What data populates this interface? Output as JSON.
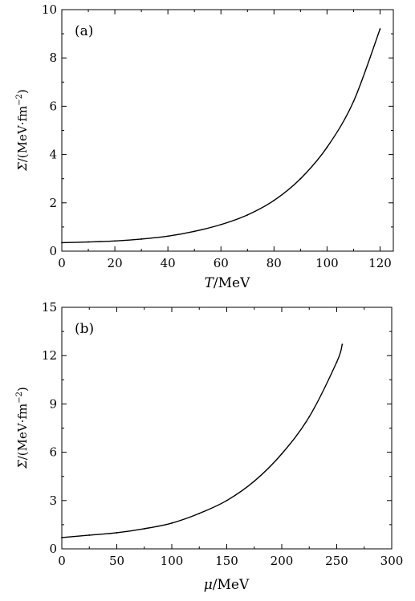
{
  "chart_data": [
    {
      "type": "line",
      "panel_label": "(a)",
      "xlabel_italic": "T",
      "xlabel_unit": "/MeV",
      "ylabel_italic": "Σ",
      "ylabel_unit": "/(MeV·fm",
      "ylabel_exp": "−2",
      "ylabel_close": ")",
      "xlim": [
        0,
        125
      ],
      "ylim": [
        0,
        10
      ],
      "xticks": [
        0,
        20,
        40,
        60,
        80,
        100,
        120
      ],
      "yticks": [
        0,
        2,
        4,
        6,
        8,
        10
      ],
      "grid": false,
      "x": [
        0,
        10,
        20,
        30,
        40,
        50,
        60,
        70,
        80,
        90,
        100,
        110,
        120
      ],
      "y": [
        0.35,
        0.38,
        0.42,
        0.5,
        0.62,
        0.82,
        1.1,
        1.5,
        2.1,
        3.0,
        4.3,
        6.2,
        9.2
      ]
    },
    {
      "type": "line",
      "panel_label": "(b)",
      "xlabel_italic": "μ",
      "xlabel_unit": "/MeV",
      "ylabel_italic": "Σ",
      "ylabel_unit": "/(MeV·fm",
      "ylabel_exp": "−2",
      "ylabel_close": ")",
      "xlim": [
        0,
        300
      ],
      "ylim": [
        0,
        15
      ],
      "xticks": [
        0,
        50,
        100,
        150,
        200,
        250,
        300
      ],
      "yticks": [
        0,
        3,
        6,
        9,
        12,
        15
      ],
      "grid": false,
      "x": [
        0,
        25,
        50,
        75,
        100,
        125,
        150,
        175,
        200,
        225,
        250,
        255
      ],
      "y": [
        0.7,
        0.85,
        1.0,
        1.25,
        1.6,
        2.2,
        3.0,
        4.2,
        5.9,
        8.2,
        11.6,
        12.7
      ]
    }
  ]
}
